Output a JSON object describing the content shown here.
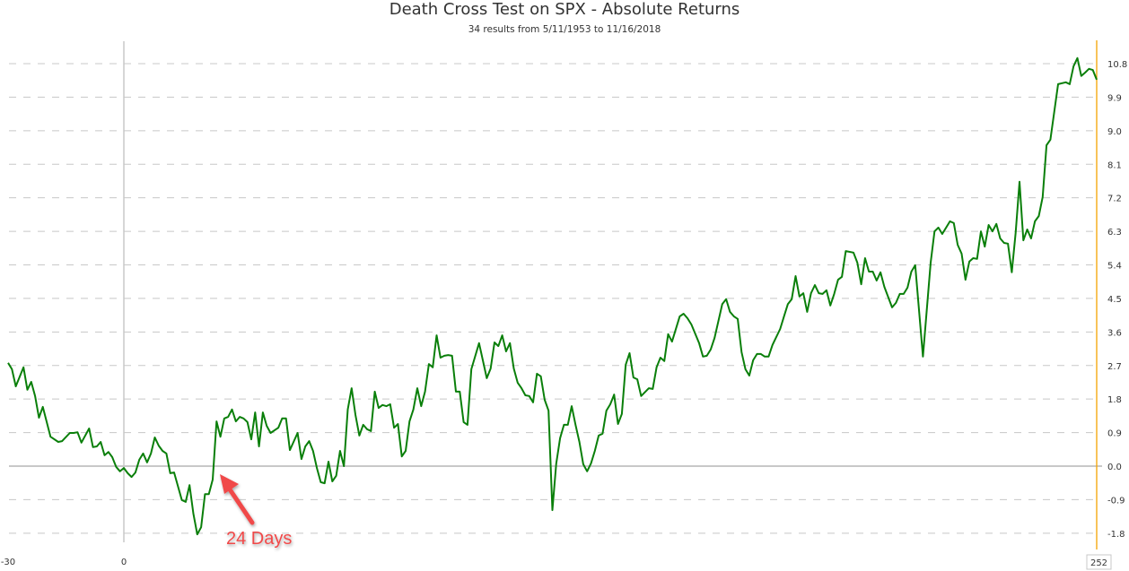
{
  "chart_data": {
    "type": "line",
    "title": "Death Cross Test on SPX - Absolute Returns",
    "subtitle": "34 results from 5/11/1953 to 11/16/2018",
    "xlabel": "",
    "ylabel": "",
    "xlim": [
      -30,
      252
    ],
    "ylim": [
      -2.0,
      11.4
    ],
    "x_tick_labels": [
      "-30",
      "0"
    ],
    "x_crosshair_label": "252",
    "y_ticks": [
      -1.8,
      -0.9,
      0.0,
      0.9,
      1.8,
      2.7,
      3.6,
      4.5,
      5.4,
      6.3,
      7.2,
      8.1,
      9.0,
      9.9,
      10.8
    ],
    "y_tick_labels": [
      "-1.8",
      "-0.9",
      "0.0",
      "0.9",
      "1.8",
      "2.7",
      "3.6",
      "4.5",
      "5.4",
      "6.3",
      "7.2",
      "8.1",
      "9.0",
      "9.9",
      "10.8"
    ],
    "y_axis_position": "right",
    "grid": "horizontal dashed",
    "colors": {
      "line": "#0a7f0a",
      "axis": "#f5a300",
      "grid": "#c8c8c8",
      "annotation": "#f04848"
    },
    "annotation": {
      "text": "24 Days",
      "x": 24,
      "y": 0.0
    },
    "series": [
      {
        "points": [
          [
            -30,
            2.77
          ],
          [
            -29,
            2.6
          ],
          [
            -28,
            2.14
          ],
          [
            -26,
            2.65
          ],
          [
            -25,
            2.05
          ],
          [
            -24,
            2.26
          ],
          [
            -23,
            1.88
          ],
          [
            -22,
            1.3
          ],
          [
            -21,
            1.59
          ],
          [
            -19,
            0.79
          ],
          [
            -17,
            0.65
          ],
          [
            -16,
            0.67
          ],
          [
            -14,
            0.89
          ],
          [
            -13,
            0.89
          ],
          [
            -12,
            0.91
          ],
          [
            -11,
            0.63
          ],
          [
            -9,
            1.01
          ],
          [
            -8,
            0.51
          ],
          [
            -7,
            0.53
          ],
          [
            -6,
            0.65
          ],
          [
            -5,
            0.29
          ],
          [
            -4,
            0.38
          ],
          [
            -3,
            0.24
          ],
          [
            -2,
            -0.02
          ],
          [
            -1,
            -0.14
          ],
          [
            0,
            -0.05
          ],
          [
            1,
            -0.19
          ],
          [
            2,
            -0.29
          ],
          [
            3,
            -0.17
          ],
          [
            4,
            0.17
          ],
          [
            5,
            0.34
          ],
          [
            6,
            0.1
          ],
          [
            7,
            0.34
          ],
          [
            8,
            0.77
          ],
          [
            9,
            0.55
          ],
          [
            10,
            0.41
          ],
          [
            11,
            0.34
          ],
          [
            12,
            -0.19
          ],
          [
            13,
            -0.17
          ],
          [
            15,
            -0.91
          ],
          [
            16,
            -0.96
          ],
          [
            17,
            -0.51
          ],
          [
            18,
            -1.28
          ],
          [
            19,
            -1.83
          ],
          [
            20,
            -1.64
          ],
          [
            21,
            -0.75
          ],
          [
            22,
            -0.75
          ],
          [
            23,
            -0.36
          ],
          [
            24,
            1.2
          ],
          [
            25,
            0.79
          ],
          [
            26,
            1.28
          ],
          [
            27,
            1.32
          ],
          [
            28,
            1.52
          ],
          [
            29,
            1.2
          ],
          [
            30,
            1.32
          ],
          [
            31,
            1.28
          ],
          [
            32,
            1.18
          ],
          [
            33,
            0.72
          ],
          [
            34,
            1.44
          ],
          [
            35,
            0.53
          ],
          [
            36,
            1.44
          ],
          [
            37,
            1.08
          ],
          [
            38,
            0.89
          ],
          [
            40,
            1.03
          ],
          [
            41,
            1.28
          ],
          [
            42,
            1.28
          ],
          [
            43,
            0.43
          ],
          [
            45,
            0.89
          ],
          [
            46,
            0.19
          ],
          [
            47,
            0.53
          ],
          [
            48,
            0.67
          ],
          [
            49,
            0.41
          ],
          [
            50,
            -0.05
          ],
          [
            51,
            -0.43
          ],
          [
            52,
            -0.46
          ],
          [
            53,
            0.12
          ],
          [
            54,
            -0.41
          ],
          [
            55,
            -0.26
          ],
          [
            56,
            0.41
          ],
          [
            57,
            0.0
          ],
          [
            58,
            1.52
          ],
          [
            59,
            2.09
          ],
          [
            60,
            1.37
          ],
          [
            61,
            0.82
          ],
          [
            62,
            1.11
          ],
          [
            63,
            0.99
          ],
          [
            64,
            0.94
          ],
          [
            65,
            2.0
          ],
          [
            66,
            1.56
          ],
          [
            67,
            1.64
          ],
          [
            68,
            1.61
          ],
          [
            69,
            1.66
          ],
          [
            70,
            1.03
          ],
          [
            71,
            1.13
          ],
          [
            72,
            0.26
          ],
          [
            73,
            0.41
          ],
          [
            74,
            1.2
          ],
          [
            75,
            1.52
          ],
          [
            76,
            2.09
          ],
          [
            77,
            1.61
          ],
          [
            78,
            2.0
          ],
          [
            79,
            2.74
          ],
          [
            80,
            2.65
          ],
          [
            81,
            3.51
          ],
          [
            82,
            2.91
          ],
          [
            83,
            2.96
          ],
          [
            84,
            2.98
          ],
          [
            85,
            2.96
          ],
          [
            86,
            2.0
          ],
          [
            87,
            2.0
          ],
          [
            88,
            1.18
          ],
          [
            89,
            1.11
          ],
          [
            90,
            2.6
          ],
          [
            92,
            3.3
          ],
          [
            94,
            2.36
          ],
          [
            95,
            2.62
          ],
          [
            96,
            3.32
          ],
          [
            97,
            3.22
          ],
          [
            98,
            3.51
          ],
          [
            99,
            3.08
          ],
          [
            100,
            3.3
          ],
          [
            101,
            2.62
          ],
          [
            102,
            2.24
          ],
          [
            103,
            2.09
          ],
          [
            104,
            1.9
          ],
          [
            105,
            1.88
          ],
          [
            106,
            1.71
          ],
          [
            107,
            2.48
          ],
          [
            108,
            2.41
          ],
          [
            109,
            1.78
          ],
          [
            110,
            1.49
          ],
          [
            111,
            -1.18
          ],
          [
            112,
            0.07
          ],
          [
            113,
            0.75
          ],
          [
            114,
            1.11
          ],
          [
            115,
            1.11
          ],
          [
            116,
            1.61
          ],
          [
            117,
            1.11
          ],
          [
            118,
            0.65
          ],
          [
            119,
            0.05
          ],
          [
            120,
            -0.14
          ],
          [
            121,
            0.07
          ],
          [
            122,
            0.41
          ],
          [
            123,
            0.82
          ],
          [
            124,
            0.87
          ],
          [
            125,
            1.49
          ],
          [
            126,
            1.66
          ],
          [
            127,
            1.92
          ],
          [
            128,
            1.13
          ],
          [
            129,
            1.4
          ],
          [
            130,
            2.72
          ],
          [
            131,
            3.03
          ],
          [
            132,
            2.38
          ],
          [
            133,
            2.33
          ],
          [
            134,
            1.88
          ],
          [
            136,
            2.09
          ],
          [
            137,
            2.07
          ],
          [
            138,
            2.65
          ],
          [
            139,
            2.91
          ],
          [
            140,
            2.82
          ],
          [
            141,
            3.54
          ],
          [
            142,
            3.34
          ],
          [
            144,
            4.02
          ],
          [
            145,
            4.09
          ],
          [
            146,
            3.97
          ],
          [
            147,
            3.8
          ],
          [
            149,
            3.3
          ],
          [
            150,
            2.94
          ],
          [
            151,
            2.96
          ],
          [
            152,
            3.13
          ],
          [
            153,
            3.44
          ],
          [
            155,
            4.35
          ],
          [
            156,
            4.48
          ],
          [
            157,
            4.14
          ],
          [
            158,
            4.02
          ],
          [
            159,
            3.95
          ],
          [
            160,
            3.06
          ],
          [
            161,
            2.6
          ],
          [
            162,
            2.43
          ],
          [
            163,
            2.84
          ],
          [
            164,
            3.01
          ],
          [
            165,
            3.01
          ],
          [
            166,
            2.94
          ],
          [
            167,
            2.94
          ],
          [
            168,
            3.25
          ],
          [
            170,
            3.68
          ],
          [
            171,
            4.02
          ],
          [
            172,
            4.35
          ],
          [
            173,
            4.48
          ],
          [
            174,
            5.1
          ],
          [
            175,
            4.55
          ],
          [
            176,
            4.64
          ],
          [
            177,
            4.14
          ],
          [
            178,
            4.64
          ],
          [
            179,
            4.86
          ],
          [
            180,
            4.64
          ],
          [
            181,
            4.62
          ],
          [
            182,
            4.72
          ],
          [
            183,
            4.31
          ],
          [
            184,
            4.62
          ],
          [
            185,
            5.0
          ],
          [
            186,
            5.08
          ],
          [
            187,
            5.77
          ],
          [
            189,
            5.73
          ],
          [
            190,
            5.46
          ],
          [
            191,
            4.88
          ],
          [
            192,
            5.58
          ],
          [
            193,
            5.22
          ],
          [
            194,
            5.22
          ],
          [
            195,
            4.98
          ],
          [
            196,
            5.2
          ],
          [
            197,
            4.81
          ],
          [
            199,
            4.26
          ],
          [
            200,
            4.38
          ],
          [
            201,
            4.62
          ],
          [
            202,
            4.62
          ],
          [
            203,
            4.79
          ],
          [
            204,
            5.22
          ],
          [
            205,
            5.39
          ],
          [
            207,
            2.94
          ],
          [
            209,
            5.46
          ],
          [
            210,
            6.3
          ],
          [
            211,
            6.4
          ],
          [
            212,
            6.23
          ],
          [
            214,
            6.57
          ],
          [
            215,
            6.52
          ],
          [
            216,
            5.94
          ],
          [
            217,
            5.7
          ],
          [
            218,
            5.0
          ],
          [
            219,
            5.49
          ],
          [
            220,
            5.58
          ],
          [
            221,
            5.56
          ],
          [
            222,
            6.3
          ],
          [
            223,
            5.89
          ],
          [
            224,
            6.47
          ],
          [
            225,
            6.3
          ],
          [
            226,
            6.5
          ],
          [
            227,
            6.11
          ],
          [
            228,
            5.99
          ],
          [
            229,
            5.97
          ],
          [
            230,
            5.2
          ],
          [
            231,
            6.26
          ],
          [
            232,
            7.63
          ],
          [
            233,
            6.06
          ],
          [
            234,
            6.35
          ],
          [
            235,
            6.11
          ],
          [
            236,
            6.57
          ],
          [
            237,
            6.71
          ],
          [
            238,
            7.22
          ],
          [
            239,
            8.61
          ],
          [
            240,
            8.76
          ],
          [
            242,
            10.25
          ],
          [
            244,
            10.3
          ],
          [
            245,
            10.25
          ],
          [
            246,
            10.73
          ],
          [
            247,
            10.95
          ],
          [
            248,
            10.47
          ],
          [
            249,
            10.56
          ],
          [
            250,
            10.66
          ],
          [
            251,
            10.63
          ],
          [
            252,
            10.37
          ]
        ]
      }
    ]
  }
}
